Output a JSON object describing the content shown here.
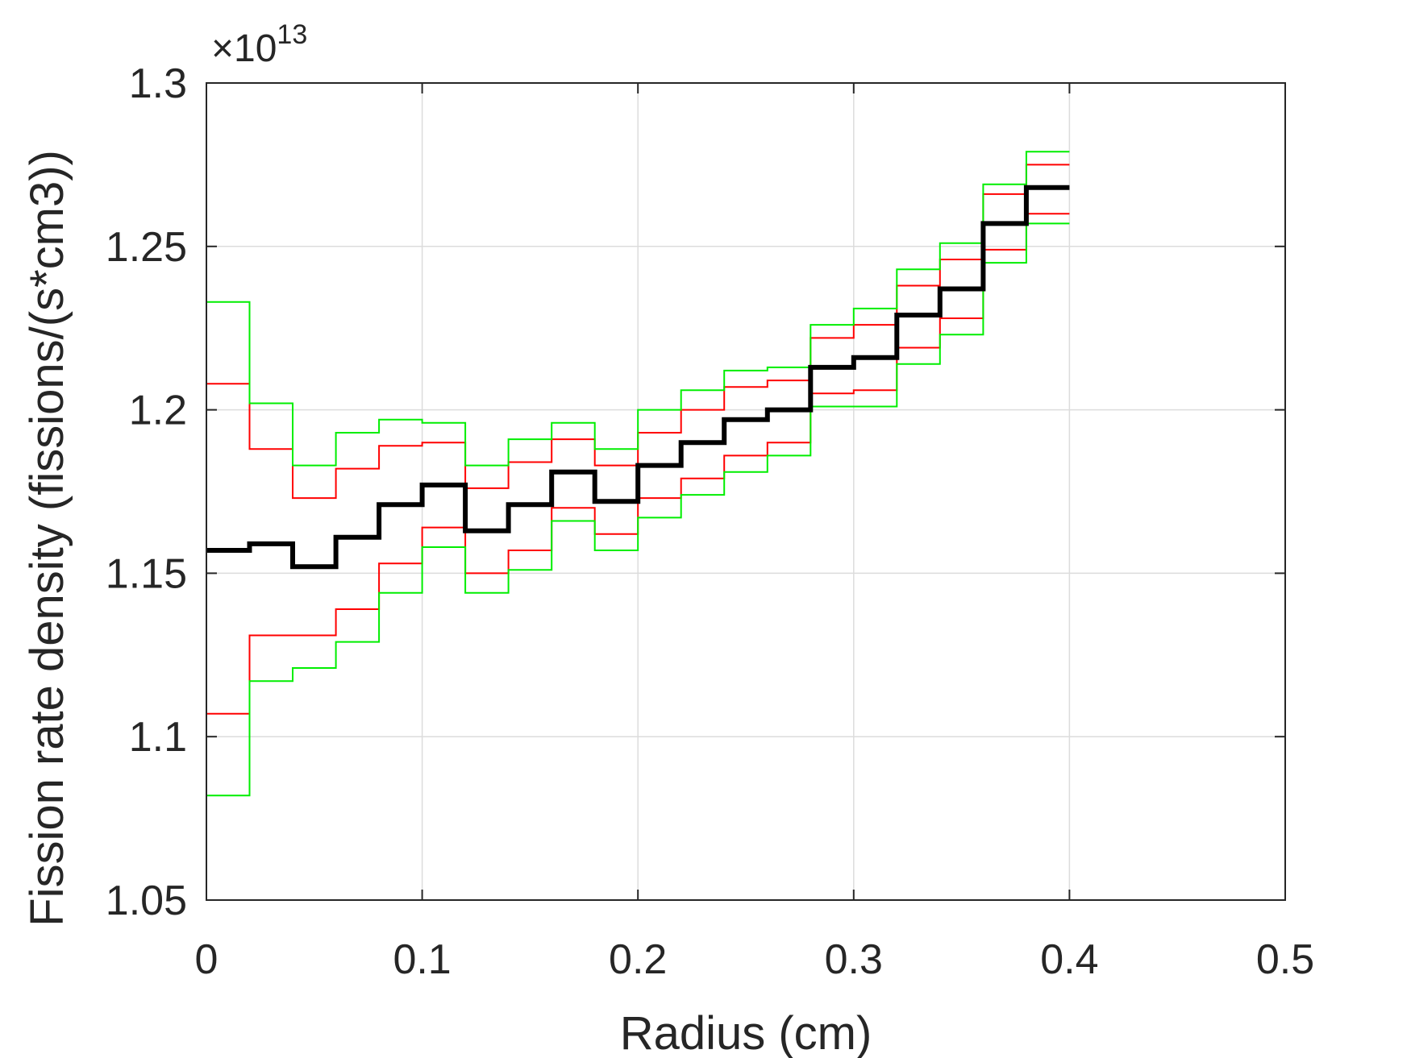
{
  "chart_data": {
    "type": "line",
    "step": true,
    "xlabel": "Radius (cm)",
    "ylabel": "Fission rate density (fissions/(s*cm3))",
    "y_exponent_label": "×10",
    "y_exponent_power": "13",
    "xlim": [
      0,
      0.5
    ],
    "ylim": [
      1.05,
      1.3
    ],
    "xticks": [
      0,
      0.1,
      0.2,
      0.3,
      0.4,
      0.5
    ],
    "xtick_labels": [
      "0",
      "0.1",
      "0.2",
      "0.3",
      "0.4",
      "0.5"
    ],
    "yticks": [
      1.05,
      1.1,
      1.15,
      1.2,
      1.25,
      1.3
    ],
    "ytick_labels": [
      "1.05",
      "1.1",
      "1.15",
      "1.2",
      "1.25",
      "1.3"
    ],
    "grid": true,
    "bin_edges": [
      0,
      0.02,
      0.04,
      0.06,
      0.08,
      0.1,
      0.12,
      0.14,
      0.16,
      0.18,
      0.2,
      0.22,
      0.24,
      0.26,
      0.28,
      0.3,
      0.32,
      0.34,
      0.36,
      0.38,
      0.4
    ],
    "series": [
      {
        "color": "#000000",
        "width": 6,
        "values": [
          1.157,
          1.159,
          1.152,
          1.161,
          1.171,
          1.177,
          1.163,
          1.171,
          1.181,
          1.172,
          1.183,
          1.19,
          1.197,
          1.2,
          1.213,
          1.216,
          1.229,
          1.237,
          1.257,
          1.268
        ]
      },
      {
        "color": "#ff0000",
        "width": 2,
        "values": [
          1.208,
          1.188,
          1.173,
          1.182,
          1.189,
          1.19,
          1.176,
          1.184,
          1.191,
          1.183,
          1.193,
          1.2,
          1.207,
          1.209,
          1.222,
          1.226,
          1.238,
          1.246,
          1.266,
          1.275
        ]
      },
      {
        "color": "#ff0000",
        "width": 2,
        "values": [
          1.107,
          1.131,
          1.131,
          1.139,
          1.153,
          1.164,
          1.15,
          1.157,
          1.17,
          1.162,
          1.173,
          1.179,
          1.186,
          1.19,
          1.205,
          1.206,
          1.219,
          1.228,
          1.249,
          1.26
        ]
      },
      {
        "color": "#00ee00",
        "width": 2,
        "values": [
          1.233,
          1.202,
          1.183,
          1.193,
          1.197,
          1.196,
          1.183,
          1.191,
          1.196,
          1.188,
          1.2,
          1.206,
          1.212,
          1.213,
          1.226,
          1.231,
          1.243,
          1.251,
          1.269,
          1.279
        ]
      },
      {
        "color": "#00ee00",
        "width": 2,
        "values": [
          1.082,
          1.117,
          1.121,
          1.129,
          1.144,
          1.158,
          1.144,
          1.151,
          1.166,
          1.157,
          1.167,
          1.174,
          1.181,
          1.186,
          1.201,
          1.201,
          1.214,
          1.223,
          1.245,
          1.257
        ]
      }
    ]
  }
}
